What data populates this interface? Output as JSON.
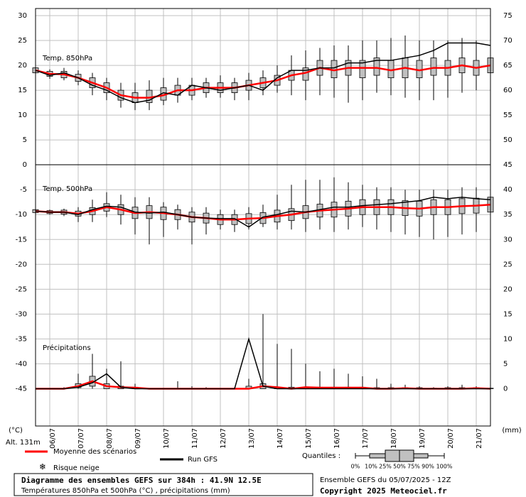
{
  "chart_data": {
    "type": "box",
    "title": "Diagramme des ensembles GEFS sur 384h : 41.9N 12.5E",
    "subtitle": "Températures 850hPa et 500hPa (°C) , précipitations (mm)",
    "y_label": "(°C)",
    "y2_label": "(mm)",
    "altitude": "Alt. 131m",
    "run": "Ensemble GEFS du 05/07/2025 - 12Z",
    "copyright": "Copyright 2025 Meteociel.fr",
    "quantiles_label": "Quantiles :",
    "quantiles": [
      "0%",
      "10%",
      "25%",
      "50%",
      "75%",
      "90%",
      "100%"
    ],
    "legend": [
      {
        "name": "Moyenne des scénarios",
        "color": "#ff0000"
      },
      {
        "name": "Run GFS",
        "color": "#000000"
      },
      {
        "name": "Risque neige",
        "color": "#3399ff"
      }
    ],
    "box_color": "#c0c0c0",
    "grid": true,
    "x": [
      0,
      0.5,
      1,
      1.5,
      2,
      2.5,
      3,
      3.5,
      4,
      4.5,
      5,
      5.5,
      6,
      6.5,
      7,
      7.5,
      8,
      8.5,
      9,
      9.5,
      10,
      10.5,
      11,
      11.5,
      12,
      12.5,
      13,
      13.5,
      14,
      14.5,
      15,
      15.5,
      16
    ],
    "xlim": [
      0,
      16
    ],
    "xticks": [
      {
        "value": 0.5,
        "label": "06/07"
      },
      {
        "value": 1.5,
        "label": "07/07"
      },
      {
        "value": 2.5,
        "label": "08/07"
      },
      {
        "value": 3.5,
        "label": "09/07"
      },
      {
        "value": 4.5,
        "label": "10/07"
      },
      {
        "value": 5.5,
        "label": "11/07"
      },
      {
        "value": 6.5,
        "label": "12/07"
      },
      {
        "value": 7.5,
        "label": "13/07"
      },
      {
        "value": 8.5,
        "label": "14/07"
      },
      {
        "value": 9.5,
        "label": "15/07"
      },
      {
        "value": 10.5,
        "label": "16/07"
      },
      {
        "value": 11.5,
        "label": "17/07"
      },
      {
        "value": 12.5,
        "label": "18/07"
      },
      {
        "value": 13.5,
        "label": "19/07"
      },
      {
        "value": 14.5,
        "label": "20/07"
      },
      {
        "value": 15.5,
        "label": "21/07"
      }
    ],
    "ylim": [
      -52.5,
      31
    ],
    "yticks": [
      30,
      25,
      20,
      15,
      10,
      5,
      0,
      -5,
      -10,
      -15,
      -20,
      -25,
      -30,
      -35,
      -40,
      -45
    ],
    "y2lim": [
      -7.5,
      76
    ],
    "y2ticks": [
      75,
      70,
      65,
      60,
      55,
      50,
      45,
      40,
      35,
      30,
      25,
      20,
      15,
      10,
      5,
      0
    ],
    "panels": [
      {
        "label": "Temp. 850hPa",
        "axis": "y",
        "mean": [
          19,
          18.3,
          18.2,
          17.5,
          16.5,
          15.5,
          14,
          13.5,
          13.5,
          14,
          15,
          15,
          15.5,
          15.5,
          15.5,
          16,
          16.5,
          17,
          18,
          18.5,
          19.5,
          19,
          19.5,
          19.5,
          19.5,
          19,
          19.5,
          19,
          19.5,
          19.5,
          20,
          19.5,
          20
        ],
        "gfs": [
          19,
          18,
          18.5,
          17.5,
          16,
          15,
          13.5,
          12.5,
          13,
          14.5,
          14,
          16,
          15.5,
          15,
          15.5,
          16,
          15,
          17.5,
          19,
          19,
          19.5,
          19.5,
          20.5,
          20.5,
          21,
          21,
          21.5,
          22,
          23,
          24.5,
          24.5,
          24.5,
          24
        ],
        "low": [
          18,
          17.3,
          17,
          16,
          14,
          13,
          11.5,
          11,
          11,
          12,
          12.5,
          13,
          13.5,
          13.5,
          13,
          13,
          14,
          14.5,
          14,
          13,
          14,
          13.5,
          12.5,
          13,
          14.5,
          14,
          13.5,
          13,
          13,
          13.5,
          14.5,
          15,
          16
        ],
        "q25": [
          18.5,
          17.8,
          17.5,
          16.8,
          15.5,
          14.5,
          13,
          12.5,
          12.5,
          13,
          14,
          14,
          14.5,
          14.5,
          14.5,
          15,
          15.5,
          16,
          17,
          17,
          18,
          17.5,
          18,
          17.5,
          18,
          17.5,
          17.5,
          17.5,
          18,
          18,
          18.5,
          18,
          18.5
        ],
        "q75": [
          19.5,
          18.8,
          18.8,
          18.2,
          17.5,
          16.5,
          15,
          14.5,
          15,
          15.5,
          16,
          16,
          16.5,
          16.5,
          16.5,
          17,
          17.5,
          18,
          19,
          19.5,
          21,
          21,
          21,
          21,
          21.5,
          21,
          21.5,
          21,
          21.5,
          21,
          21.5,
          21,
          21.5
        ],
        "high": [
          20,
          19.2,
          19.5,
          19,
          18.5,
          17.5,
          16.5,
          16.5,
          17,
          17.5,
          17.5,
          17.5,
          17.5,
          18,
          17.5,
          18.5,
          19,
          20,
          22,
          23,
          23.5,
          24,
          24,
          25,
          25,
          25.5,
          26,
          25,
          25,
          25,
          25.5,
          25,
          24.5
        ]
      },
      {
        "label": "Temp. 500hPa",
        "axis": "y",
        "mean": [
          -9.3,
          -9.5,
          -9.5,
          -9.8,
          -9.3,
          -8.5,
          -9,
          -9.7,
          -9.5,
          -9.7,
          -10,
          -10.5,
          -10.7,
          -11,
          -11,
          -10.8,
          -10.7,
          -10.3,
          -10,
          -9.5,
          -9.2,
          -9,
          -8.8,
          -8.5,
          -8.5,
          -8.5,
          -8.7,
          -8.8,
          -8.5,
          -8.5,
          -8.3,
          -8.2,
          -8
        ],
        "gfs": [
          -9.3,
          -9.5,
          -9.5,
          -10,
          -9,
          -8.3,
          -8.5,
          -9.5,
          -9.7,
          -9.5,
          -10,
          -10.5,
          -10.7,
          -10.8,
          -10.8,
          -12.5,
          -10.5,
          -10,
          -9.3,
          -9.5,
          -9,
          -8.5,
          -8.5,
          -8.2,
          -8,
          -7.8,
          -7.5,
          -7.2,
          -6.5,
          -6.8,
          -6.5,
          -6.8,
          -7
        ],
        "low": [
          -9.8,
          -10,
          -10.3,
          -11.5,
          -11.5,
          -10.5,
          -12,
          -14,
          -16,
          -14.5,
          -13,
          -16,
          -14,
          -13,
          -13.5,
          -13,
          -12.5,
          -13,
          -13,
          -13.5,
          -13,
          -13.5,
          -13,
          -12.5,
          -13,
          -13.5,
          -14,
          -14.5,
          -15,
          -14.5,
          -14,
          -13.5,
          -12.5
        ],
        "q25": [
          -9.6,
          -9.8,
          -9.9,
          -10.3,
          -10,
          -9.3,
          -10,
          -10.8,
          -10.8,
          -11,
          -11,
          -11.5,
          -11.7,
          -12,
          -12,
          -11.8,
          -11.8,
          -11.5,
          -11.2,
          -10.8,
          -10.5,
          -10.5,
          -10.3,
          -10,
          -10,
          -10,
          -10.2,
          -10.3,
          -10,
          -10,
          -9.8,
          -9.7,
          -9.5
        ],
        "q75": [
          -9,
          -9.2,
          -9.1,
          -9.3,
          -8.6,
          -7.8,
          -8,
          -8.5,
          -8.2,
          -8.5,
          -9,
          -9.5,
          -9.7,
          -10,
          -10,
          -9.8,
          -9.6,
          -9.1,
          -8.8,
          -8.2,
          -7.9,
          -7.5,
          -7.3,
          -7,
          -7,
          -7,
          -7.2,
          -7.3,
          -7,
          -7,
          -6.8,
          -6.7,
          -6.5
        ],
        "high": [
          -8.8,
          -9,
          -8.8,
          -8.5,
          -7,
          -5.5,
          -6,
          -6.5,
          -6.5,
          -7.5,
          -8,
          -8.5,
          -8.5,
          -9,
          -9,
          -8.5,
          -8,
          -6,
          -4,
          -3,
          -3,
          -2.5,
          -3.5,
          -4,
          -4.5,
          -4.5,
          -5,
          -5,
          -5,
          -5,
          -4.5,
          -4.5,
          -5
        ]
      },
      {
        "label": "Précipitations",
        "axis": "y2",
        "mean": [
          0,
          0,
          0,
          0.5,
          1.5,
          0.5,
          0.3,
          0.2,
          0,
          0,
          0,
          0,
          0,
          0,
          0,
          0,
          0.5,
          0.3,
          0,
          0.3,
          0.2,
          0.2,
          0.2,
          0.2,
          0,
          0,
          0.1,
          0,
          0,
          0,
          0,
          0.1,
          0
        ],
        "gfs": [
          0,
          0,
          0,
          0.3,
          1.2,
          3,
          0.3,
          0,
          0,
          0,
          0,
          0,
          0,
          0,
          0,
          10,
          0.5,
          0,
          0,
          0,
          0,
          0,
          0,
          0,
          0,
          0,
          0,
          0,
          0,
          0,
          0,
          0,
          0
        ],
        "low": [
          0,
          0,
          0,
          0,
          0,
          0,
          0,
          0,
          0,
          0,
          0,
          0,
          0,
          0,
          0,
          0,
          0,
          0,
          0,
          0,
          0,
          0,
          0,
          0,
          0,
          0,
          0,
          0,
          0,
          0,
          0,
          0,
          0
        ],
        "q25": [
          0,
          0,
          0,
          0.2,
          0.5,
          0,
          0,
          0,
          0,
          0,
          0,
          0,
          0,
          0,
          0,
          0,
          0,
          0,
          0,
          0,
          0,
          0,
          0,
          0,
          0,
          0,
          0,
          0,
          0,
          0,
          0,
          0,
          0
        ],
        "q75": [
          0,
          0,
          0,
          1,
          2.5,
          1,
          0.5,
          0.3,
          0,
          0,
          0,
          0,
          0,
          0,
          0,
          0.5,
          1,
          0.3,
          0.3,
          0.3,
          0.3,
          0.3,
          0.3,
          0.3,
          0.2,
          0.2,
          0.2,
          0.2,
          0.1,
          0.2,
          0.2,
          0.2,
          0.1
        ],
        "high": [
          0,
          0,
          0.3,
          3,
          7,
          4,
          5.5,
          1,
          0,
          0,
          1.5,
          0.5,
          0.3,
          0,
          0.3,
          2,
          15,
          9,
          8,
          5,
          3.5,
          4,
          3,
          2.5,
          2,
          1,
          0.8,
          0.5,
          0.3,
          0.5,
          0.8,
          0.5,
          0.2
        ]
      }
    ]
  }
}
